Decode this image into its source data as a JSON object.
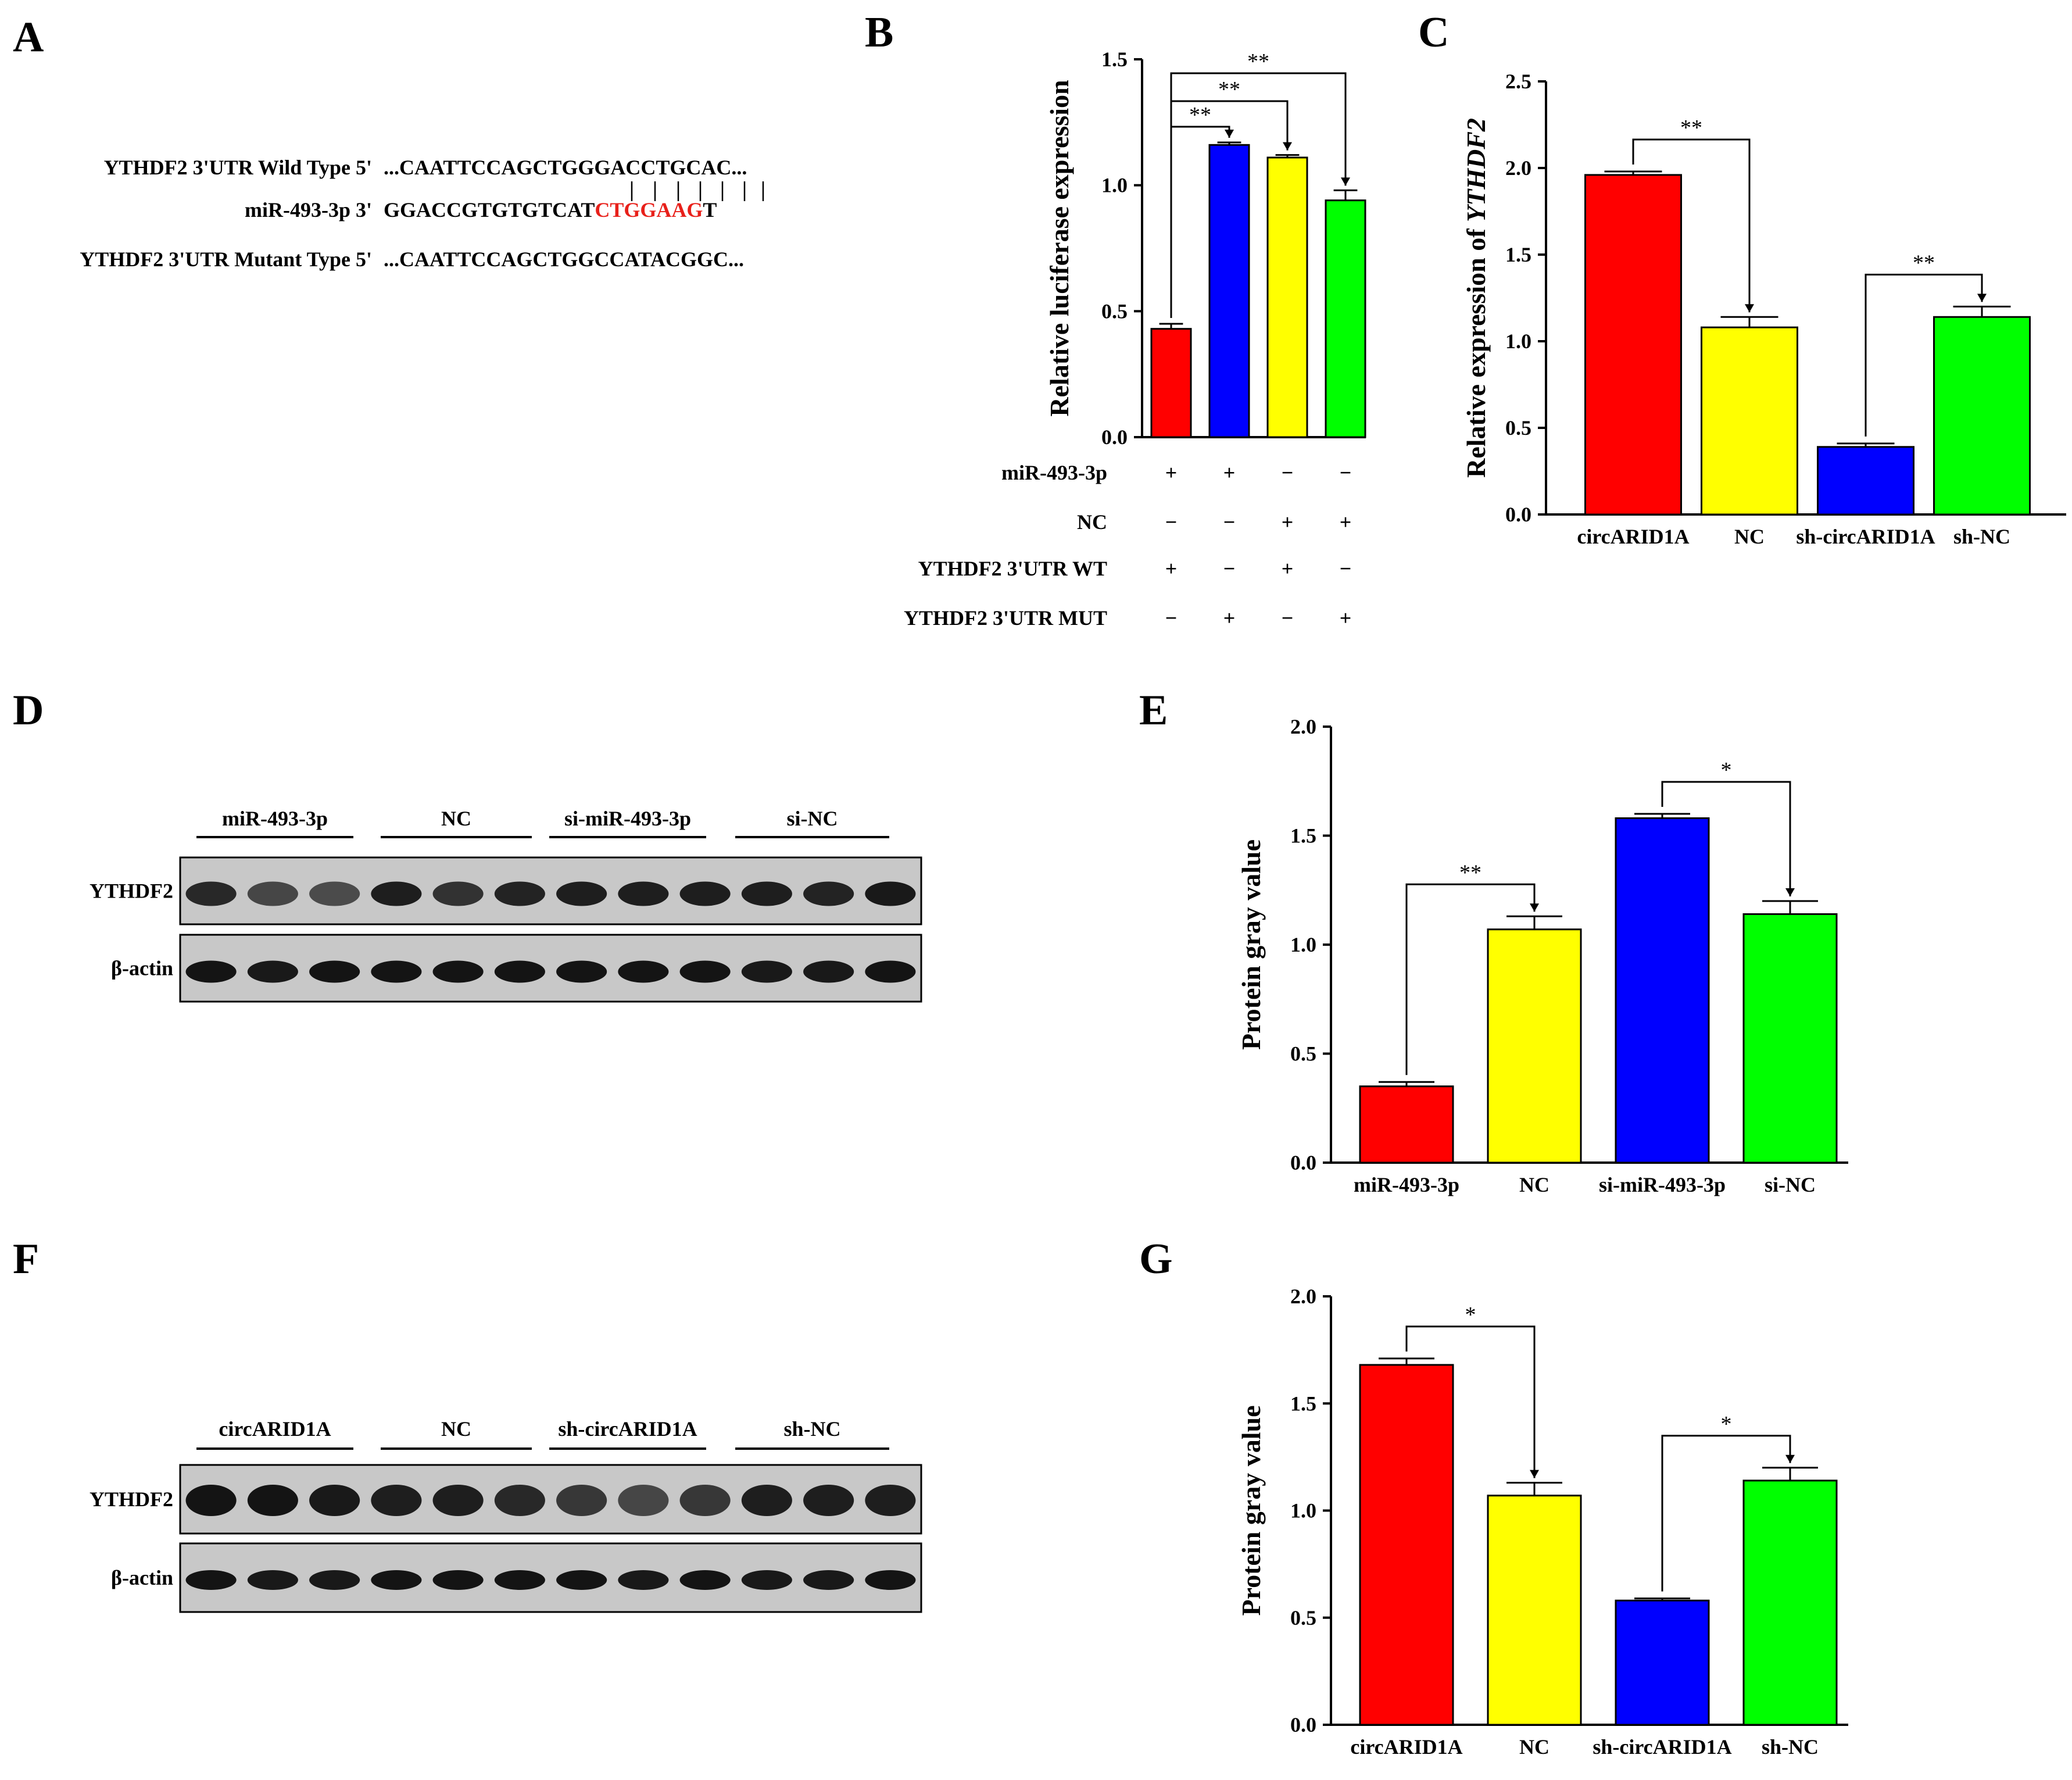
{
  "panels": {
    "A": {
      "letter": "A",
      "rows": [
        {
          "label": "YTHDF2 3'UTR Wild Type  5'",
          "seq": "...CAATTCCAGCTGGGACCTGCAC..."
        },
        {
          "label": "miR-493-3p  3'",
          "seq_plain": "GGACCGTGTGTCAT",
          "seq_red": "CTGGAAG",
          "seq_tail": "T"
        },
        {
          "label": "YTHDF2 3'UTR Mutant Type  5'",
          "seq": "...CAATTCCAGCTGGCCATACGGC..."
        }
      ],
      "highlight_color": "#e8201a"
    },
    "B": {
      "letter": "B"
    },
    "C": {
      "letter": "C"
    },
    "D": {
      "letter": "D",
      "groups": [
        "miR-493-3p",
        "NC",
        "si-miR-493-3p",
        "si-NC"
      ],
      "rows": [
        "YTHDF2",
        "β-actin"
      ]
    },
    "E": {
      "letter": "E"
    },
    "F": {
      "letter": "F",
      "groups": [
        "circARID1A",
        "NC",
        "sh-circARID1A",
        "sh-NC"
      ],
      "rows": [
        "YTHDF2",
        "β-actin"
      ]
    },
    "G": {
      "letter": "G"
    }
  },
  "chart_data": [
    {
      "panel": "B",
      "type": "bar",
      "ylabel": "Relative luciferase expression",
      "ylim": [
        0,
        1.5
      ],
      "yticks": [
        "0.0",
        "0.5",
        "1.0",
        "1.5"
      ],
      "values": [
        0.43,
        1.16,
        1.11,
        0.94
      ],
      "errors": [
        0.02,
        0.01,
        0.01,
        0.04
      ],
      "colors": [
        "#ff0000",
        "#0000ff",
        "#ffff00",
        "#00ff00"
      ],
      "conditions": [
        {
          "name": "miR-493-3p",
          "signs": [
            "+",
            "+",
            "−",
            "−"
          ]
        },
        {
          "name": "NC",
          "signs": [
            "−",
            "−",
            "+",
            "+"
          ]
        },
        {
          "name": "YTHDF2 3'UTR WT",
          "signs": [
            "+",
            "−",
            "+",
            "−"
          ]
        },
        {
          "name": "YTHDF2 3'UTR MUT",
          "signs": [
            "−",
            "+",
            "−",
            "+"
          ]
        }
      ],
      "significance": [
        {
          "from": 0,
          "to": 1,
          "label": "**"
        },
        {
          "from": 0,
          "to": 2,
          "label": "**"
        },
        {
          "from": 0,
          "to": 3,
          "label": "**"
        }
      ]
    },
    {
      "panel": "C",
      "type": "bar",
      "ylabel_prefix": "Relative expression of ",
      "ylabel_gene": "YTHDF2",
      "ylim": [
        0,
        2.5
      ],
      "yticks": [
        "0.0",
        "0.5",
        "1.0",
        "1.5",
        "2.0",
        "2.5"
      ],
      "categories": [
        "circARID1A",
        "NC",
        "sh-circARID1A",
        "sh-NC"
      ],
      "values": [
        1.96,
        1.08,
        0.39,
        1.14
      ],
      "errors": [
        0.02,
        0.06,
        0.02,
        0.06
      ],
      "colors": [
        "#ff0000",
        "#ffff00",
        "#0000ff",
        "#00ff00"
      ],
      "significance": [
        {
          "from": 0,
          "to": 1,
          "label": "**"
        },
        {
          "from": 2,
          "to": 3,
          "label": "**"
        }
      ]
    },
    {
      "panel": "E",
      "type": "bar",
      "ylabel": "Protein gray value",
      "ylim": [
        0,
        2.0
      ],
      "yticks": [
        "0.0",
        "0.5",
        "1.0",
        "1.5",
        "2.0"
      ],
      "categories": [
        "miR-493-3p",
        "NC",
        "si-miR-493-3p",
        "si-NC"
      ],
      "values": [
        0.35,
        1.07,
        1.58,
        1.14
      ],
      "errors": [
        0.02,
        0.06,
        0.02,
        0.06
      ],
      "colors": [
        "#ff0000",
        "#ffff00",
        "#0000ff",
        "#00ff00"
      ],
      "significance": [
        {
          "from": 0,
          "to": 1,
          "label": "**"
        },
        {
          "from": 2,
          "to": 3,
          "label": "*"
        }
      ]
    },
    {
      "panel": "G",
      "type": "bar",
      "ylabel": "Protein gray value",
      "ylim": [
        0,
        2.0
      ],
      "yticks": [
        "0.0",
        "0.5",
        "1.0",
        "1.5",
        "2.0"
      ],
      "categories": [
        "circARID1A",
        "NC",
        "sh-circARID1A",
        "sh-NC"
      ],
      "values": [
        1.68,
        1.07,
        0.58,
        1.14
      ],
      "errors": [
        0.03,
        0.06,
        0.01,
        0.06
      ],
      "colors": [
        "#ff0000",
        "#ffff00",
        "#0000ff",
        "#00ff00"
      ],
      "significance": [
        {
          "from": 0,
          "to": 1,
          "label": "*"
        },
        {
          "from": 2,
          "to": 3,
          "label": "*"
        }
      ]
    }
  ]
}
